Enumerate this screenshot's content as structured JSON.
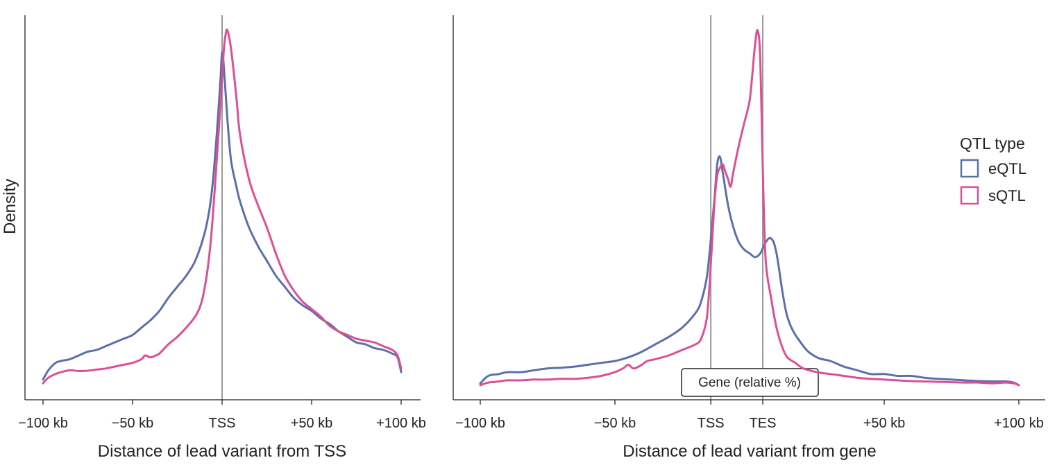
{
  "colors": {
    "eQTL": "#5b6fad",
    "sQTL": "#dd4f94",
    "ref_line": "#9a9a9a",
    "axis": "#222222"
  },
  "legend": {
    "title": "QTL type",
    "entries": [
      {
        "name": "eQTL",
        "color": "#5b6fad"
      },
      {
        "name": "sQTL",
        "color": "#dd4f94"
      }
    ]
  },
  "chart_data": [
    {
      "type": "line",
      "ylabel": "Density",
      "xlabel": "Distance of lead variant from TSS",
      "xlim": [
        -100,
        100
      ],
      "ylim": [
        0,
        1
      ],
      "xticks": [
        {
          "value": -100,
          "label": "−100 kb"
        },
        {
          "value": -50,
          "label": "−50 kb"
        },
        {
          "value": 0,
          "label": "TSS"
        },
        {
          "value": 50,
          "label": "+50 kb"
        },
        {
          "value": 100,
          "label": "+100 kb"
        }
      ],
      "vlines": [
        0
      ],
      "legend_position": "right",
      "series": [
        {
          "name": "eQTL",
          "color": "#5b6fad",
          "x": [
            -100,
            -97,
            -93,
            -90,
            -85,
            -80,
            -75,
            -70,
            -65,
            -60,
            -55,
            -50,
            -45,
            -40,
            -35,
            -30,
            -25,
            -20,
            -15,
            -10,
            -7,
            -5,
            -3,
            -1,
            0,
            1,
            3,
            5,
            8,
            10,
            15,
            20,
            25,
            30,
            35,
            40,
            45,
            50,
            55,
            60,
            65,
            70,
            75,
            80,
            85,
            90,
            95,
            98,
            100
          ],
          "y": [
            0.06,
            0.085,
            0.105,
            0.11,
            0.115,
            0.125,
            0.135,
            0.14,
            0.15,
            0.16,
            0.17,
            0.18,
            0.2,
            0.22,
            0.245,
            0.28,
            0.31,
            0.34,
            0.38,
            0.45,
            0.52,
            0.6,
            0.72,
            0.86,
            0.94,
            0.9,
            0.76,
            0.65,
            0.58,
            0.54,
            0.47,
            0.42,
            0.38,
            0.34,
            0.31,
            0.28,
            0.26,
            0.245,
            0.225,
            0.21,
            0.19,
            0.175,
            0.16,
            0.155,
            0.145,
            0.14,
            0.13,
            0.12,
            0.08
          ]
        },
        {
          "name": "sQTL",
          "color": "#dd4f94",
          "x": [
            -100,
            -97,
            -93,
            -90,
            -85,
            -80,
            -75,
            -70,
            -65,
            -60,
            -55,
            -50,
            -45,
            -43,
            -40,
            -37,
            -35,
            -30,
            -25,
            -20,
            -15,
            -12,
            -10,
            -8,
            -6,
            -4,
            -2,
            0,
            1,
            2,
            3,
            5,
            8,
            10,
            15,
            20,
            25,
            30,
            35,
            40,
            45,
            50,
            55,
            60,
            65,
            70,
            75,
            80,
            85,
            90,
            95,
            98,
            100
          ],
          "y": [
            0.05,
            0.065,
            0.075,
            0.08,
            0.085,
            0.083,
            0.084,
            0.087,
            0.09,
            0.095,
            0.1,
            0.105,
            0.115,
            0.125,
            0.12,
            0.125,
            0.13,
            0.155,
            0.175,
            0.2,
            0.23,
            0.26,
            0.3,
            0.36,
            0.45,
            0.58,
            0.72,
            0.87,
            0.95,
            0.99,
            1.0,
            0.95,
            0.82,
            0.72,
            0.6,
            0.53,
            0.47,
            0.4,
            0.34,
            0.3,
            0.27,
            0.25,
            0.23,
            0.205,
            0.19,
            0.18,
            0.17,
            0.165,
            0.16,
            0.15,
            0.14,
            0.125,
            0.09
          ]
        }
      ]
    },
    {
      "type": "line",
      "ylabel": "",
      "xlabel": "Distance of lead variant from gene",
      "xlim": [
        -100,
        100
      ],
      "ylim": [
        0,
        1
      ],
      "xticks": [
        {
          "value": -100,
          "label": "−100 kb"
        },
        {
          "value": -50,
          "label": "−50 kb"
        },
        {
          "value": -14.4,
          "label": "TSS"
        },
        {
          "value": 4.9,
          "label": "TES"
        },
        {
          "value": 50,
          "label": "+50 kb"
        },
        {
          "value": 100,
          "label": "+100 kb"
        }
      ],
      "vlines": [
        -14.4,
        4.9
      ],
      "annotation": "Gene (relative %)",
      "legend_position": "right",
      "series": [
        {
          "name": "eQTL",
          "color": "#5b6fad",
          "x": [
            -100,
            -97,
            -93,
            -90,
            -85,
            -80,
            -75,
            -70,
            -65,
            -60,
            -55,
            -50,
            -45,
            -40,
            -35,
            -30,
            -25,
            -20,
            -18,
            -16,
            -15,
            -14,
            -13,
            -12,
            -11,
            -10,
            -8,
            -6,
            -4,
            -2,
            0,
            2,
            4,
            6,
            8,
            10,
            14,
            20,
            25,
            30,
            35,
            40,
            45,
            50,
            55,
            60,
            65,
            70,
            75,
            80,
            85,
            90,
            95,
            98,
            100
          ],
          "y": [
            0.05,
            0.07,
            0.075,
            0.08,
            0.08,
            0.085,
            0.09,
            0.092,
            0.095,
            0.1,
            0.105,
            0.11,
            0.12,
            0.135,
            0.155,
            0.175,
            0.2,
            0.24,
            0.27,
            0.33,
            0.39,
            0.47,
            0.55,
            0.64,
            0.66,
            0.62,
            0.53,
            0.47,
            0.43,
            0.41,
            0.4,
            0.39,
            0.4,
            0.43,
            0.44,
            0.4,
            0.23,
            0.15,
            0.12,
            0.11,
            0.095,
            0.085,
            0.075,
            0.075,
            0.07,
            0.07,
            0.065,
            0.062,
            0.06,
            0.058,
            0.056,
            0.055,
            0.055,
            0.052,
            0.045
          ]
        },
        {
          "name": "sQTL",
          "color": "#dd4f94",
          "x": [
            -100,
            -97,
            -93,
            -90,
            -85,
            -80,
            -75,
            -70,
            -65,
            -60,
            -55,
            -50,
            -47,
            -45,
            -43,
            -40,
            -38,
            -35,
            -30,
            -25,
            -20,
            -18,
            -16,
            -15,
            -14,
            -13,
            -12,
            -11,
            -10,
            -9,
            -8,
            -7,
            -6,
            -4,
            -2,
            0,
            1,
            2,
            3,
            4,
            5,
            6,
            8,
            10,
            12,
            14,
            17,
            20,
            25,
            30,
            35,
            40,
            45,
            50,
            55,
            60,
            65,
            70,
            75,
            80,
            85,
            90,
            95,
            98,
            100
          ],
          "y": [
            0.045,
            0.052,
            0.055,
            0.058,
            0.058,
            0.06,
            0.06,
            0.062,
            0.062,
            0.065,
            0.07,
            0.08,
            0.09,
            0.1,
            0.09,
            0.1,
            0.11,
            0.115,
            0.125,
            0.14,
            0.155,
            0.17,
            0.22,
            0.3,
            0.42,
            0.54,
            0.61,
            0.63,
            0.64,
            0.62,
            0.6,
            0.58,
            0.62,
            0.69,
            0.75,
            0.81,
            0.88,
            0.96,
            1.0,
            0.92,
            0.6,
            0.38,
            0.28,
            0.2,
            0.15,
            0.12,
            0.105,
            0.09,
            0.08,
            0.075,
            0.07,
            0.065,
            0.062,
            0.06,
            0.058,
            0.056,
            0.055,
            0.054,
            0.053,
            0.052,
            0.052,
            0.05,
            0.052,
            0.05,
            0.045
          ]
        }
      ]
    }
  ]
}
